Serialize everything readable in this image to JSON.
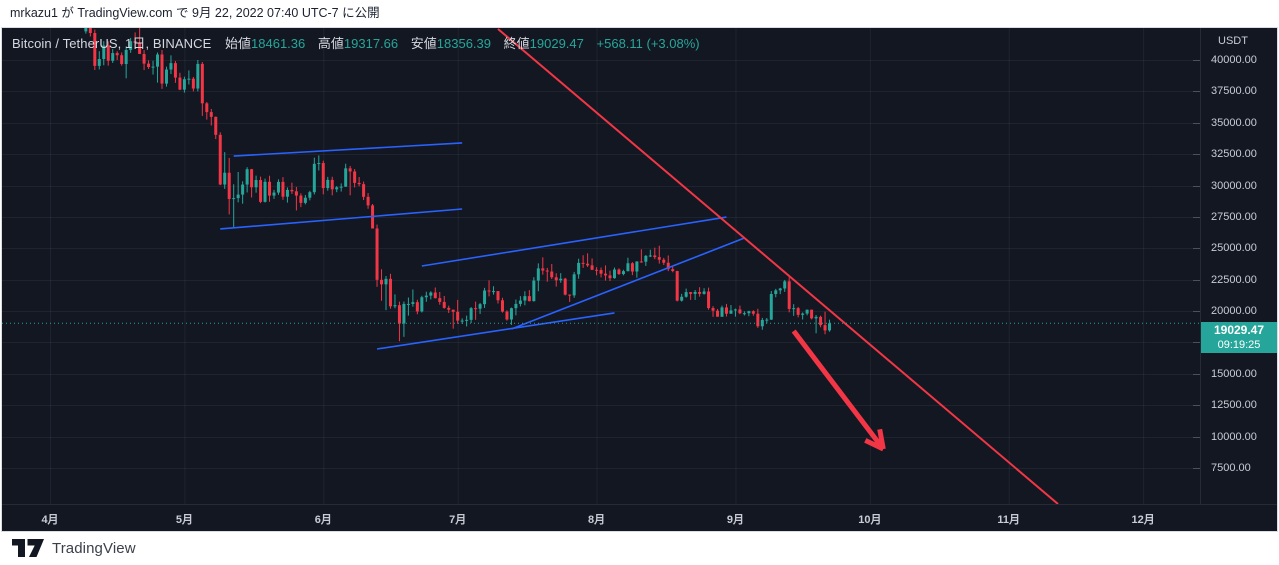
{
  "page": {
    "publish_text": "mrkazu1 が TradingView.com で 9月 22, 2022 07:40 UTC-7 に公開",
    "footer_brand": "TradingView"
  },
  "chart": {
    "legend": {
      "title": "Bitcoin / TetherUS, 1日, BINANCE",
      "open_label": "始値",
      "open": "18461.36",
      "high_label": "高値",
      "high": "19317.66",
      "low_label": "安値",
      "low": "18356.39",
      "close_label": "終値",
      "close": "19029.47",
      "change": "+568.11 (+3.08%)"
    },
    "axis_currency": "USDT",
    "price_label": {
      "price": "19029.47",
      "countdown": "09:19:25"
    }
  },
  "chart_data": {
    "type": "candlestick",
    "symbol": "Bitcoin / TetherUS",
    "exchange": "BINANCE",
    "interval": "1日",
    "time_anchor": "2022-04-01",
    "start_date": "2022-04-09",
    "last_price": 19029.47,
    "y_axis": {
      "labels_min": 7500,
      "labels_max": 40000,
      "step": 2500,
      "decimals": 2
    },
    "time_axis": [
      {
        "date": "2022-04-01",
        "label": "4月"
      },
      {
        "date": "2022-05-01",
        "label": "5月"
      },
      {
        "date": "2022-06-01",
        "label": "6月"
      },
      {
        "date": "2022-07-01",
        "label": "7月"
      },
      {
        "date": "2022-08-01",
        "label": "8月"
      },
      {
        "date": "2022-09-01",
        "label": "9月"
      },
      {
        "date": "2022-10-01",
        "label": "10月"
      },
      {
        "date": "2022-11-01",
        "label": "11月"
      },
      {
        "date": "2022-12-01",
        "label": "12月"
      }
    ],
    "colors": {
      "up": "#26a69a",
      "down": "#f23645",
      "trendline": "#f23645",
      "arrow": "#f23645",
      "channel": "#2962ff",
      "last_price_line": "#26a69a",
      "label_bg": "#26a69a"
    },
    "drawings": {
      "trendline": {
        "from": {
          "date": "2022-07-10",
          "price": 42470
        },
        "to": {
          "date": "2022-11-12",
          "price": 4630
        }
      },
      "arrow": {
        "from": {
          "date": "2022-09-14",
          "price": 18410
        },
        "to": {
          "date": "2022-10-04",
          "price": 9010
        }
      },
      "channels": [
        {
          "from": {
            "date": "2022-05-12",
            "price": 32350
          },
          "to": {
            "date": "2022-07-02",
            "price": 33390
          }
        },
        {
          "from": {
            "date": "2022-05-09",
            "price": 26540
          },
          "to": {
            "date": "2022-07-02",
            "price": 28130
          }
        },
        {
          "from": {
            "date": "2022-06-23",
            "price": 23590
          },
          "to": {
            "date": "2022-08-30",
            "price": 27490
          }
        },
        {
          "from": {
            "date": "2022-07-13",
            "price": 18570
          },
          "to": {
            "date": "2022-09-03",
            "price": 25820
          }
        },
        {
          "from": {
            "date": "2022-06-13",
            "price": 16980
          },
          "to": {
            "date": "2022-08-05",
            "price": 19850
          }
        }
      ]
    },
    "ohlc": [
      [
        42280,
        42800,
        42100,
        42750
      ],
      [
        42750,
        43100,
        41870,
        42150
      ],
      [
        42150,
        42420,
        39200,
        39530
      ],
      [
        39530,
        40700,
        39250,
        40080
      ],
      [
        40080,
        41500,
        39580,
        41160
      ],
      [
        41160,
        41480,
        39550,
        39940
      ],
      [
        39940,
        40870,
        39770,
        40550
      ],
      [
        40550,
        40700,
        40000,
        40380
      ],
      [
        40380,
        40600,
        39550,
        39680
      ],
      [
        39680,
        41100,
        38540,
        40800
      ],
      [
        40800,
        41760,
        40570,
        41500
      ],
      [
        41500,
        42200,
        40900,
        41370
      ],
      [
        41370,
        43000,
        40800,
        40480
      ],
      [
        40480,
        40790,
        39200,
        39710
      ],
      [
        39710,
        39980,
        39290,
        39440
      ],
      [
        39440,
        39940,
        38840,
        39470
      ],
      [
        39470,
        40600,
        38200,
        40440
      ],
      [
        40440,
        40800,
        37700,
        38120
      ],
      [
        38120,
        39470,
        37880,
        39240
      ],
      [
        39240,
        40370,
        38880,
        39750
      ],
      [
        39750,
        39920,
        38180,
        38600
      ],
      [
        38600,
        38980,
        37600,
        37640
      ],
      [
        37640,
        38670,
        37400,
        38470
      ],
      [
        38470,
        39170,
        38050,
        38510
      ],
      [
        38510,
        38650,
        37500,
        37730
      ],
      [
        37730,
        40000,
        37500,
        39690
      ],
      [
        39690,
        39840,
        35550,
        36550
      ],
      [
        36550,
        36650,
        35250,
        35850
      ],
      [
        35850,
        36100,
        34780,
        35470
      ],
      [
        35470,
        35500,
        33700,
        34040
      ],
      [
        34040,
        34240,
        30030,
        30080
      ],
      [
        30080,
        32660,
        29730,
        31020
      ],
      [
        31020,
        32200,
        27700,
        28930
      ],
      [
        28930,
        30100,
        26700,
        29000
      ],
      [
        29000,
        31080,
        28660,
        29280
      ],
      [
        29280,
        30340,
        28550,
        30080
      ],
      [
        30080,
        31460,
        29450,
        31300
      ],
      [
        31300,
        31330,
        29050,
        29860
      ],
      [
        29860,
        30790,
        29430,
        30440
      ],
      [
        30440,
        30710,
        28600,
        28700
      ],
      [
        28700,
        30550,
        28650,
        30300
      ],
      [
        30300,
        30780,
        28710,
        29200
      ],
      [
        29200,
        29650,
        28940,
        29440
      ],
      [
        29440,
        30490,
        29260,
        30290
      ],
      [
        30290,
        30670,
        28860,
        29110
      ],
      [
        29110,
        29850,
        28640,
        29650
      ],
      [
        29650,
        30230,
        29330,
        29540
      ],
      [
        29540,
        29890,
        28020,
        29200
      ],
      [
        29200,
        29380,
        28280,
        28620
      ],
      [
        28620,
        29250,
        28500,
        29030
      ],
      [
        29030,
        29580,
        28820,
        29470
      ],
      [
        29470,
        32220,
        29290,
        31730
      ],
      [
        31730,
        32400,
        31200,
        31790
      ],
      [
        31790,
        31980,
        29300,
        29800
      ],
      [
        29800,
        30690,
        29590,
        30450
      ],
      [
        30450,
        30700,
        29220,
        29700
      ],
      [
        29700,
        29960,
        29470,
        29860
      ],
      [
        29860,
        30170,
        29520,
        29910
      ],
      [
        29910,
        31740,
        29890,
        31370
      ],
      [
        31370,
        31560,
        29220,
        31120
      ],
      [
        31120,
        31310,
        29850,
        30210
      ],
      [
        30210,
        30680,
        29940,
        30110
      ],
      [
        30110,
        30320,
        28850,
        29100
      ],
      [
        29100,
        29400,
        28150,
        28420
      ],
      [
        28420,
        28530,
        26590,
        26580
      ],
      [
        26580,
        26890,
        21930,
        22490
      ],
      [
        22490,
        23330,
        20820,
        22130
      ],
      [
        22130,
        22790,
        20080,
        22570
      ],
      [
        22570,
        22970,
        20190,
        20380
      ],
      [
        20380,
        21330,
        20220,
        20470
      ],
      [
        20470,
        20750,
        17600,
        19010
      ],
      [
        19010,
        20760,
        17950,
        20570
      ],
      [
        20570,
        21080,
        19640,
        20570
      ],
      [
        20570,
        21720,
        20350,
        20710
      ],
      [
        20710,
        20900,
        19750,
        19970
      ],
      [
        19970,
        21220,
        19890,
        21100
      ],
      [
        21100,
        21540,
        20740,
        21230
      ],
      [
        21230,
        21580,
        20930,
        21480
      ],
      [
        21480,
        21880,
        21000,
        21030
      ],
      [
        21030,
        21520,
        20510,
        20730
      ],
      [
        20730,
        21200,
        20190,
        20250
      ],
      [
        20250,
        20430,
        19850,
        20110
      ],
      [
        20110,
        20120,
        18600,
        19940
      ],
      [
        19940,
        20890,
        18980,
        19240
      ],
      [
        19240,
        19420,
        18970,
        19240
      ],
      [
        19240,
        19640,
        18780,
        19300
      ],
      [
        19300,
        20320,
        19050,
        20230
      ],
      [
        20230,
        20750,
        19300,
        20190
      ],
      [
        20190,
        20650,
        19770,
        20550
      ],
      [
        20550,
        21850,
        20250,
        21640
      ],
      [
        21640,
        22450,
        21170,
        21590
      ],
      [
        21590,
        21980,
        21310,
        21590
      ],
      [
        21590,
        21600,
        20600,
        20860
      ],
      [
        20860,
        21060,
        19880,
        19960
      ],
      [
        19960,
        20060,
        19240,
        19330
      ],
      [
        19330,
        20280,
        18900,
        20230
      ],
      [
        20230,
        20920,
        19660,
        20570
      ],
      [
        20570,
        21190,
        20370,
        20840
      ],
      [
        20840,
        21580,
        20460,
        21190
      ],
      [
        21190,
        21670,
        20770,
        20790
      ],
      [
        20790,
        22700,
        20760,
        22430
      ],
      [
        22430,
        23800,
        21580,
        23400
      ],
      [
        23400,
        24280,
        22900,
        23230
      ],
      [
        23230,
        23440,
        22340,
        23150
      ],
      [
        23150,
        23750,
        22550,
        22690
      ],
      [
        22690,
        23010,
        21950,
        22450
      ],
      [
        22450,
        23020,
        22260,
        22580
      ],
      [
        22580,
        22650,
        21250,
        21310
      ],
      [
        21310,
        21330,
        20730,
        21250
      ],
      [
        21250,
        23120,
        21060,
        22930
      ],
      [
        22930,
        24170,
        22580,
        23840
      ],
      [
        23840,
        24450,
        23440,
        23770
      ],
      [
        23770,
        24600,
        23510,
        23640
      ],
      [
        23640,
        24190,
        23260,
        23290
      ],
      [
        23290,
        23500,
        22850,
        23270
      ],
      [
        23270,
        23470,
        22680,
        22980
      ],
      [
        22980,
        23640,
        22430,
        22840
      ],
      [
        22840,
        23220,
        22400,
        22620
      ],
      [
        22620,
        23470,
        22580,
        23310
      ],
      [
        23310,
        23400,
        22880,
        22950
      ],
      [
        22950,
        23290,
        22850,
        23180
      ],
      [
        23180,
        24250,
        23160,
        23810
      ],
      [
        23810,
        23900,
        22860,
        23150
      ],
      [
        23150,
        23970,
        22660,
        23950
      ],
      [
        23950,
        24920,
        23850,
        23930
      ],
      [
        23930,
        24460,
        23600,
        24400
      ],
      [
        24400,
        24890,
        24300,
        24430
      ],
      [
        24430,
        25050,
        24130,
        24300
      ],
      [
        24300,
        25210,
        23780,
        24090
      ],
      [
        24090,
        24240,
        23670,
        23850
      ],
      [
        23850,
        24430,
        23180,
        23340
      ],
      [
        23340,
        23600,
        23090,
        23190
      ],
      [
        23190,
        23210,
        20770,
        20830
      ],
      [
        20830,
        21370,
        20760,
        21140
      ],
      [
        21140,
        21790,
        21070,
        21510
      ],
      [
        21510,
        21520,
        20890,
        21370
      ],
      [
        21370,
        21680,
        20890,
        21520
      ],
      [
        21520,
        21900,
        21150,
        21370
      ],
      [
        21370,
        21820,
        21310,
        21560
      ],
      [
        21560,
        21870,
        20110,
        20240
      ],
      [
        20240,
        20390,
        19540,
        20030
      ],
      [
        20030,
        20170,
        19550,
        19550
      ],
      [
        19550,
        20430,
        19540,
        20290
      ],
      [
        20290,
        20570,
        19570,
        19790
      ],
      [
        19790,
        20480,
        19790,
        20050
      ],
      [
        20050,
        20200,
        19560,
        20130
      ],
      [
        20130,
        20440,
        19750,
        19830
      ],
      [
        19830,
        19980,
        19650,
        19830
      ],
      [
        19830,
        20030,
        19590,
        19990
      ],
      [
        19990,
        20060,
        19630,
        19790
      ],
      [
        19790,
        20180,
        18660,
        18790
      ],
      [
        18790,
        19460,
        18510,
        19290
      ],
      [
        19290,
        19450,
        19010,
        19320
      ],
      [
        19320,
        21600,
        19290,
        21360
      ],
      [
        21360,
        21770,
        21100,
        21650
      ],
      [
        21650,
        21850,
        21350,
        21800
      ],
      [
        21800,
        22480,
        21530,
        22370
      ],
      [
        22370,
        22700,
        19900,
        20170
      ],
      [
        20170,
        20550,
        19620,
        20230
      ],
      [
        20230,
        20330,
        19500,
        19700
      ],
      [
        19700,
        19890,
        19330,
        19800
      ],
      [
        19800,
        20120,
        19660,
        20110
      ],
      [
        20110,
        20120,
        19340,
        19420
      ],
      [
        19420,
        19690,
        18230,
        19540
      ],
      [
        19540,
        19630,
        18710,
        18880
      ],
      [
        18880,
        19950,
        18150,
        18460
      ],
      [
        18461.36,
        19317.66,
        18356.39,
        19029.47
      ]
    ]
  }
}
